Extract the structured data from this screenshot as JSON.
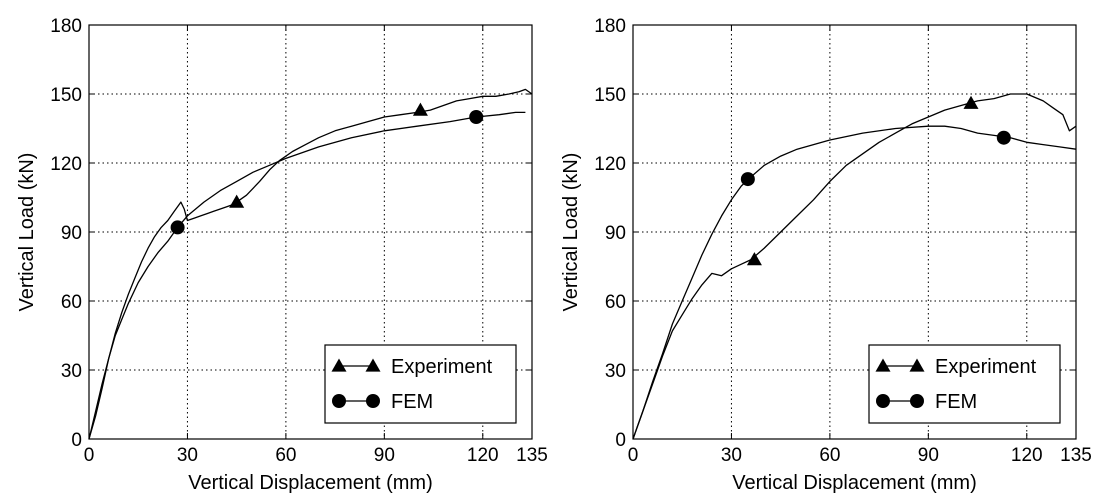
{
  "chart_data": [
    {
      "type": "line",
      "xlabel": "Vertical Displacement (mm)",
      "ylabel": "Vertical Load (kN)",
      "xlim": [
        0,
        135
      ],
      "ylim": [
        0,
        180
      ],
      "xticks": [
        0,
        30,
        60,
        90,
        120,
        135
      ],
      "yticks": [
        0,
        30,
        60,
        90,
        120,
        150,
        180
      ],
      "grid": true,
      "legend_position": "bottom-right",
      "series": [
        {
          "name": "Experiment",
          "marker": "triangle",
          "x": [
            0,
            2,
            4,
            6,
            8,
            10,
            12,
            14,
            16,
            18,
            20,
            22,
            24,
            26,
            28,
            29,
            30,
            32,
            34,
            36,
            38,
            40,
            42,
            44,
            46,
            48,
            50,
            52,
            55,
            58,
            62,
            66,
            70,
            75,
            80,
            85,
            90,
            95,
            100,
            104,
            108,
            112,
            116,
            120,
            124,
            128,
            131,
            133,
            135
          ],
          "y": [
            0,
            10,
            22,
            35,
            46,
            55,
            63,
            70,
            77,
            83,
            88,
            92,
            95,
            99,
            103,
            100,
            95,
            96,
            97,
            98,
            99,
            100,
            101,
            102,
            104,
            106,
            109,
            112,
            117,
            121,
            125,
            128,
            131,
            134,
            136,
            138,
            140,
            141,
            142,
            143,
            145,
            147,
            148,
            149,
            149,
            150,
            151,
            152,
            150
          ],
          "marker_points": [
            [
              45,
              103
            ],
            [
              101,
              143
            ]
          ]
        },
        {
          "name": "FEM",
          "marker": "circle",
          "x": [
            0,
            2,
            4,
            6,
            8,
            10,
            12,
            15,
            18,
            21,
            24,
            27,
            30,
            35,
            40,
            45,
            50,
            55,
            60,
            70,
            80,
            90,
            100,
            110,
            118,
            125,
            130,
            133
          ],
          "y": [
            0,
            12,
            24,
            35,
            45,
            52,
            59,
            68,
            75,
            81,
            86,
            92,
            97,
            103,
            108,
            112,
            116,
            119,
            122,
            127,
            131,
            134,
            136,
            138,
            140,
            141,
            142,
            142
          ],
          "marker_points": [
            [
              27,
              92
            ],
            [
              118,
              140
            ]
          ]
        }
      ]
    },
    {
      "type": "line",
      "xlabel": "Vertical Displacement (mm)",
      "ylabel": "Vertical Load (kN)",
      "xlim": [
        0,
        135
      ],
      "ylim": [
        0,
        180
      ],
      "xticks": [
        0,
        30,
        60,
        90,
        120,
        135
      ],
      "yticks": [
        0,
        30,
        60,
        90,
        120,
        150,
        180
      ],
      "grid": true,
      "legend_position": "bottom-right",
      "series": [
        {
          "name": "Experiment",
          "marker": "triangle",
          "x": [
            0,
            3,
            6,
            9,
            12,
            15,
            18,
            21,
            24,
            27,
            30,
            33,
            36,
            40,
            45,
            50,
            55,
            60,
            65,
            70,
            75,
            80,
            85,
            90,
            95,
            100,
            105,
            110,
            115,
            120,
            125,
            128,
            131,
            133,
            135
          ],
          "y": [
            0,
            12,
            24,
            36,
            47,
            54,
            61,
            67,
            72,
            71,
            74,
            76,
            78,
            83,
            90,
            97,
            104,
            112,
            119,
            124,
            129,
            133,
            137,
            140,
            143,
            145,
            147,
            148,
            150,
            150,
            147,
            144,
            141,
            134,
            136
          ],
          "marker_points": [
            [
              37,
              78
            ],
            [
              103,
              146
            ]
          ]
        },
        {
          "name": "FEM",
          "marker": "circle",
          "x": [
            0,
            3,
            6,
            9,
            12,
            15,
            18,
            21,
            24,
            27,
            30,
            33,
            36,
            40,
            45,
            50,
            55,
            60,
            70,
            80,
            90,
            95,
            100,
            105,
            110,
            115,
            120,
            125,
            130,
            135
          ],
          "y": [
            0,
            12,
            25,
            37,
            50,
            60,
            70,
            80,
            89,
            97,
            104,
            110,
            114,
            119,
            123,
            126,
            128,
            130,
            133,
            135,
            136,
            136,
            135,
            133,
            132,
            131,
            129,
            128,
            127,
            126
          ],
          "marker_points": [
            [
              35,
              113
            ],
            [
              113,
              131
            ]
          ]
        }
      ]
    }
  ]
}
